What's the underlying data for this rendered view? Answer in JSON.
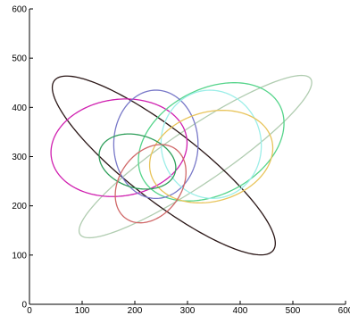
{
  "chart_data": {
    "type": "scatter",
    "title": "",
    "xlabel": "",
    "ylabel": "",
    "xlim": [
      0,
      600
    ],
    "ylim": [
      0,
      600
    ],
    "x_ticks": [
      0,
      100,
      200,
      300,
      400,
      500,
      600
    ],
    "y_ticks": [
      0,
      100,
      200,
      300,
      400,
      500,
      600
    ],
    "x_tick_labels": [
      "0",
      "100",
      "200",
      "300",
      "400",
      "500",
      "600"
    ],
    "y_tick_labels": [
      "0",
      "100",
      "200",
      "300",
      "400",
      "500",
      "600"
    ],
    "grid": false,
    "legend": "none",
    "ellipses": [
      {
        "cx": 315,
        "cy": 300,
        "rx": 270,
        "ry": 55,
        "angle_deg": 36,
        "color": "#b0ccb0"
      },
      {
        "cx": 255,
        "cy": 282,
        "rx": 270,
        "ry": 70,
        "angle_deg": -40,
        "color": "#2a1616"
      },
      {
        "cx": 170,
        "cy": 318,
        "rx": 130,
        "ry": 98,
        "angle_deg": 10,
        "color": "#d020b0"
      },
      {
        "cx": 345,
        "cy": 330,
        "rx": 150,
        "ry": 105,
        "angle_deg": 33,
        "color": "#55d48a"
      },
      {
        "cx": 240,
        "cy": 325,
        "rx": 80,
        "ry": 110,
        "angle_deg": 0,
        "color": "#7878c8"
      },
      {
        "cx": 345,
        "cy": 325,
        "rx": 95,
        "ry": 110,
        "angle_deg": 5,
        "color": "#9ceee8"
      },
      {
        "cx": 345,
        "cy": 300,
        "rx": 120,
        "ry": 90,
        "angle_deg": 20,
        "color": "#e8c45a"
      },
      {
        "cx": 205,
        "cy": 290,
        "rx": 75,
        "ry": 53,
        "angle_deg": -20,
        "color": "#2e9e5a"
      },
      {
        "cx": 230,
        "cy": 245,
        "rx": 60,
        "ry": 85,
        "angle_deg": -30,
        "color": "#d06868"
      }
    ]
  }
}
